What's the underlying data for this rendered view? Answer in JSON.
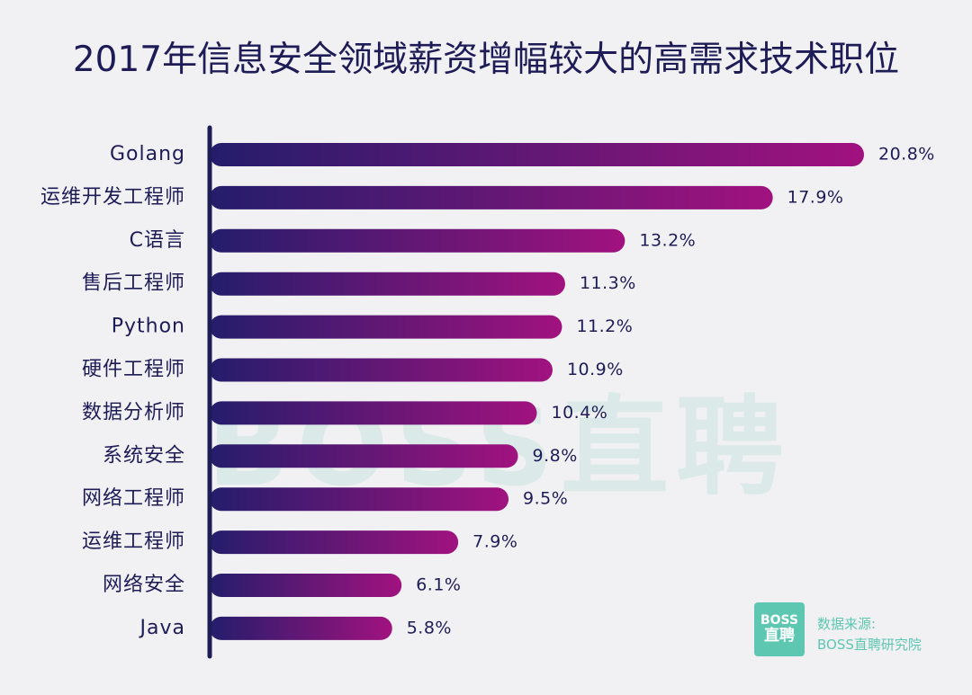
{
  "chart_data": {
    "type": "bar",
    "orientation": "horizontal",
    "title": "2017年信息安全领域薪资增幅较大的高需求技术职位",
    "categories": [
      "Golang",
      "运维开发工程师",
      "C语言",
      "售后工程师",
      "Python",
      "硬件工程师",
      "数据分析师",
      "系统安全",
      "网络工程师",
      "运维工程师",
      "网络安全",
      "Java"
    ],
    "values": [
      20.8,
      17.9,
      13.2,
      11.3,
      11.2,
      10.9,
      10.4,
      9.8,
      9.5,
      7.9,
      6.1,
      5.8
    ],
    "value_labels": [
      "20.8%",
      "17.9%",
      "13.2%",
      "11.3%",
      "11.2%",
      "10.9%",
      "10.4%",
      "9.8%",
      "9.5%",
      "7.9%",
      "6.1%",
      "5.8%"
    ],
    "unit": "%",
    "xlim": [
      0,
      20.8
    ],
    "grid": false,
    "legend": "none",
    "colors": {
      "bar_start": "#241d6b",
      "bar_end": "#a1127f",
      "axis": "#1e1c57",
      "text": "#1e1c57",
      "background": "#f1f1f3"
    }
  },
  "watermark": "BOSS直聘",
  "source": {
    "logo_line1": "BOSS",
    "logo_line2": "直聘",
    "label": "数据来源:",
    "name": "BOSS直聘研究院",
    "color": "#5ec7b1"
  }
}
